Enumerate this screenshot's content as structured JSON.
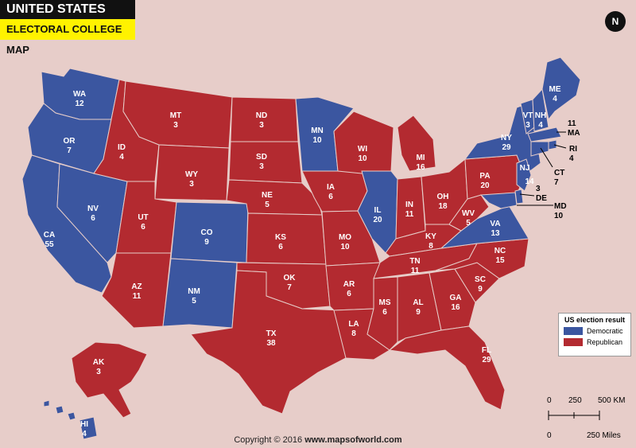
{
  "header": {
    "title": "UNITED STATES",
    "subtitle": "ELECTORAL COLLEGE MAP"
  },
  "compass": {
    "label": "N"
  },
  "colors": {
    "democratic": "#3b56a0",
    "republican": "#b32a30",
    "background": "#e7cdc9",
    "highlight": "#fff200"
  },
  "states": [
    {
      "abbr": "WA",
      "votes": "12",
      "party": "democratic"
    },
    {
      "abbr": "OR",
      "votes": "7",
      "party": "democratic"
    },
    {
      "abbr": "CA",
      "votes": "55",
      "party": "democratic"
    },
    {
      "abbr": "NV",
      "votes": "6",
      "party": "democratic"
    },
    {
      "abbr": "ID",
      "votes": "4",
      "party": "republican"
    },
    {
      "abbr": "MT",
      "votes": "3",
      "party": "republican"
    },
    {
      "abbr": "WY",
      "votes": "3",
      "party": "republican"
    },
    {
      "abbr": "UT",
      "votes": "6",
      "party": "republican"
    },
    {
      "abbr": "AZ",
      "votes": "11",
      "party": "republican"
    },
    {
      "abbr": "CO",
      "votes": "9",
      "party": "democratic"
    },
    {
      "abbr": "NM",
      "votes": "5",
      "party": "democratic"
    },
    {
      "abbr": "ND",
      "votes": "3",
      "party": "republican"
    },
    {
      "abbr": "SD",
      "votes": "3",
      "party": "republican"
    },
    {
      "abbr": "NE",
      "votes": "5",
      "party": "republican"
    },
    {
      "abbr": "KS",
      "votes": "6",
      "party": "republican"
    },
    {
      "abbr": "OK",
      "votes": "7",
      "party": "republican"
    },
    {
      "abbr": "TX",
      "votes": "38",
      "party": "republican"
    },
    {
      "abbr": "MN",
      "votes": "10",
      "party": "democratic"
    },
    {
      "abbr": "IA",
      "votes": "6",
      "party": "republican"
    },
    {
      "abbr": "MO",
      "votes": "10",
      "party": "republican"
    },
    {
      "abbr": "AR",
      "votes": "6",
      "party": "republican"
    },
    {
      "abbr": "LA",
      "votes": "8",
      "party": "republican"
    },
    {
      "abbr": "WI",
      "votes": "10",
      "party": "republican"
    },
    {
      "abbr": "IL",
      "votes": "20",
      "party": "democratic"
    },
    {
      "abbr": "MI",
      "votes": "16",
      "party": "republican"
    },
    {
      "abbr": "IN",
      "votes": "11",
      "party": "republican"
    },
    {
      "abbr": "OH",
      "votes": "18",
      "party": "republican"
    },
    {
      "abbr": "KY",
      "votes": "8",
      "party": "republican"
    },
    {
      "abbr": "TN",
      "votes": "11",
      "party": "republican"
    },
    {
      "abbr": "MS",
      "votes": "6",
      "party": "republican"
    },
    {
      "abbr": "AL",
      "votes": "9",
      "party": "republican"
    },
    {
      "abbr": "GA",
      "votes": "16",
      "party": "republican"
    },
    {
      "abbr": "FL",
      "votes": "29",
      "party": "republican"
    },
    {
      "abbr": "SC",
      "votes": "9",
      "party": "republican"
    },
    {
      "abbr": "NC",
      "votes": "15",
      "party": "republican"
    },
    {
      "abbr": "VA",
      "votes": "13",
      "party": "democratic"
    },
    {
      "abbr": "WV",
      "votes": "5",
      "party": "republican"
    },
    {
      "abbr": "PA",
      "votes": "20",
      "party": "republican"
    },
    {
      "abbr": "NY",
      "votes": "29",
      "party": "democratic"
    },
    {
      "abbr": "VT",
      "votes": "3",
      "party": "democratic"
    },
    {
      "abbr": "NH",
      "votes": "4",
      "party": "democratic"
    },
    {
      "abbr": "ME",
      "votes": "4",
      "party": "democratic"
    },
    {
      "abbr": "NJ",
      "votes": "14",
      "party": "democratic"
    },
    {
      "abbr": "AK",
      "votes": "3",
      "party": "republican"
    },
    {
      "abbr": "HI",
      "votes": "4",
      "party": "democratic"
    }
  ],
  "callouts": [
    {
      "abbr": "MA",
      "votes": "11",
      "party": "democratic"
    },
    {
      "abbr": "RI",
      "votes": "4",
      "party": "democratic"
    },
    {
      "abbr": "CT",
      "votes": "7",
      "party": "democratic"
    },
    {
      "abbr": "DE",
      "votes": "3",
      "party": "democratic"
    },
    {
      "abbr": "MD",
      "votes": "10",
      "party": "democratic"
    }
  ],
  "legend": {
    "title": "US election result",
    "democratic": "Democratic",
    "republican": "Republican"
  },
  "scale": {
    "km_0": "0",
    "km_250": "250",
    "km_500": "500 KM",
    "mi_0": "0",
    "mi_250": "250 Miles"
  },
  "footer": {
    "copyright": "Copyright © 2016",
    "site": "www.mapsofworld.com"
  }
}
